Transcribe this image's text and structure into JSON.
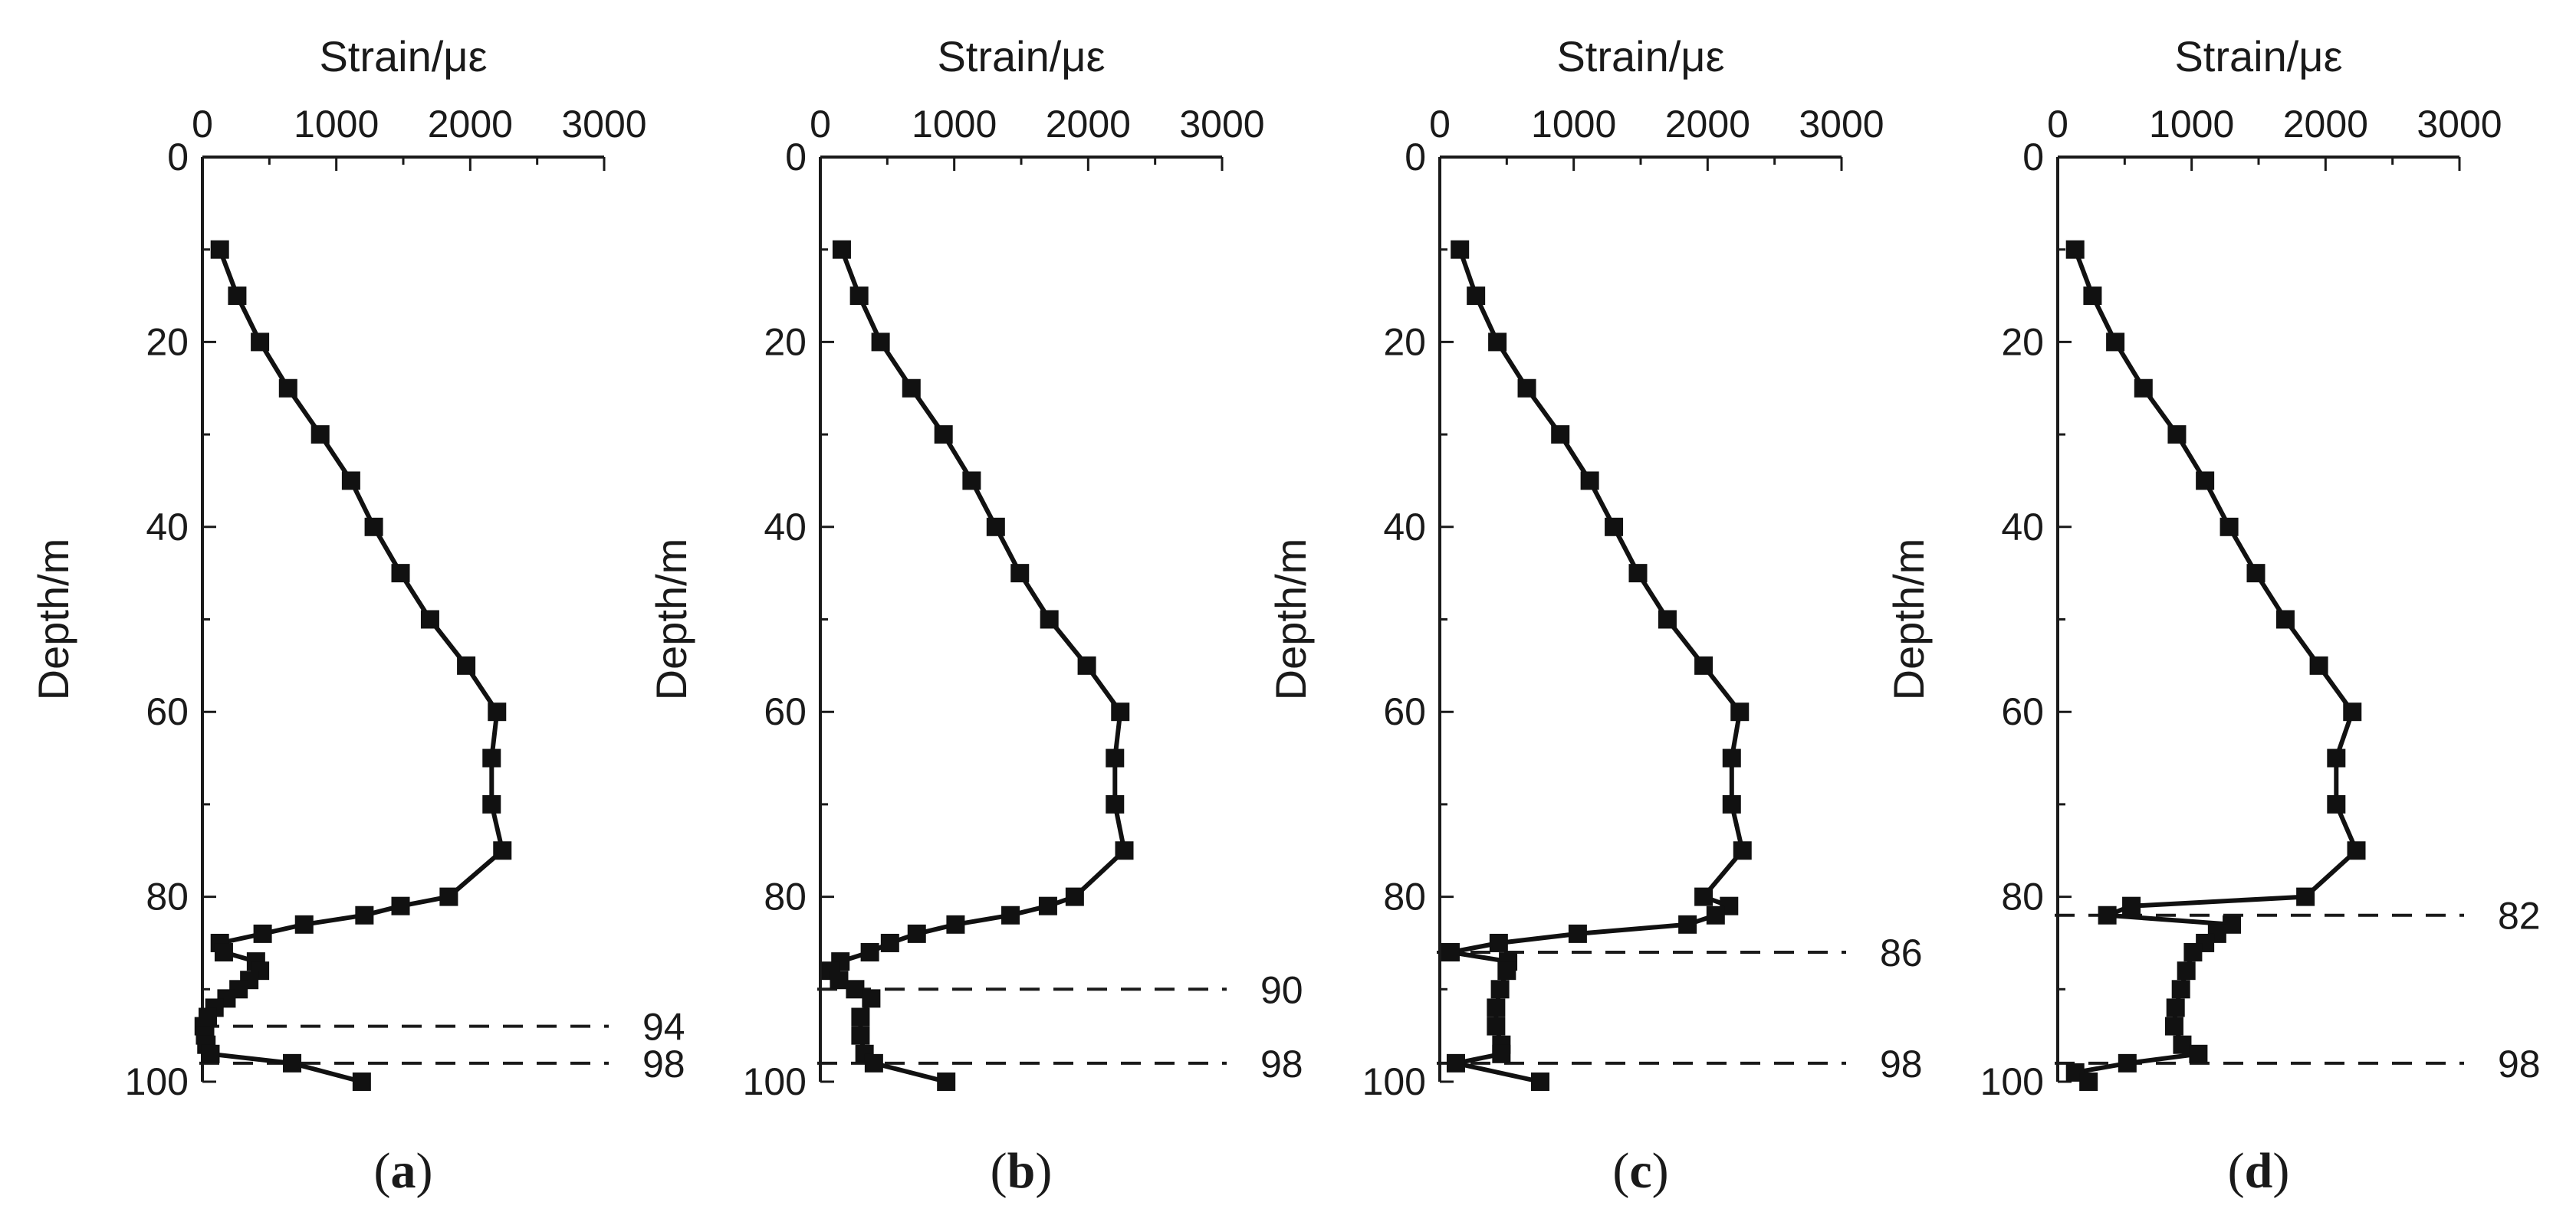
{
  "chart_data": [
    {
      "type": "line",
      "panel_label": "a",
      "xlabel": "Strain/με",
      "ylabel": "Depth/m",
      "xlim": [
        0,
        3000
      ],
      "ylim": [
        0,
        100
      ],
      "y_inverted": true,
      "x_axis_position": "top",
      "xticks": [
        0,
        1000,
        2000,
        3000
      ],
      "yticks": [
        0,
        20,
        40,
        60,
        80,
        100
      ],
      "marker": "square",
      "series": [
        {
          "name": "strain",
          "points": [
            [
              130,
              10
            ],
            [
              260,
              15
            ],
            [
              430,
              20
            ],
            [
              640,
              25
            ],
            [
              880,
              30
            ],
            [
              1110,
              35
            ],
            [
              1280,
              40
            ],
            [
              1480,
              45
            ],
            [
              1700,
              50
            ],
            [
              1970,
              55
            ],
            [
              2200,
              60
            ],
            [
              2160,
              65
            ],
            [
              2160,
              70
            ],
            [
              2240,
              75
            ],
            [
              1840,
              80
            ],
            [
              1480,
              81
            ],
            [
              1210,
              82
            ],
            [
              760,
              83
            ],
            [
              450,
              84
            ],
            [
              130,
              85
            ],
            [
              160,
              86
            ],
            [
              400,
              87
            ],
            [
              430,
              88
            ],
            [
              350,
              89
            ],
            [
              270,
              90
            ],
            [
              180,
              91
            ],
            [
              90,
              92
            ],
            [
              40,
              93
            ],
            [
              10,
              94
            ],
            [
              20,
              95
            ],
            [
              30,
              96
            ],
            [
              60,
              97
            ],
            [
              670,
              98
            ],
            [
              1190,
              100
            ]
          ]
        }
      ],
      "reference_lines": [
        {
          "depth": 94,
          "label": "94"
        },
        {
          "depth": 98,
          "label": "98"
        }
      ]
    },
    {
      "type": "line",
      "panel_label": "b",
      "xlabel": "Strain/με",
      "ylabel": "Depth/m",
      "xlim": [
        0,
        3000
      ],
      "ylim": [
        0,
        100
      ],
      "y_inverted": true,
      "x_axis_position": "top",
      "xticks": [
        0,
        1000,
        2000,
        3000
      ],
      "yticks": [
        0,
        20,
        40,
        60,
        80,
        100
      ],
      "marker": "square",
      "series": [
        {
          "name": "strain",
          "points": [
            [
              160,
              10
            ],
            [
              290,
              15
            ],
            [
              450,
              20
            ],
            [
              680,
              25
            ],
            [
              920,
              30
            ],
            [
              1130,
              35
            ],
            [
              1310,
              40
            ],
            [
              1490,
              45
            ],
            [
              1710,
              50
            ],
            [
              1990,
              55
            ],
            [
              2240,
              60
            ],
            [
              2200,
              65
            ],
            [
              2200,
              70
            ],
            [
              2270,
              75
            ],
            [
              1900,
              80
            ],
            [
              1700,
              81
            ],
            [
              1420,
              82
            ],
            [
              1010,
              83
            ],
            [
              720,
              84
            ],
            [
              520,
              85
            ],
            [
              370,
              86
            ],
            [
              150,
              87
            ],
            [
              80,
              88
            ],
            [
              140,
              89
            ],
            [
              260,
              90
            ],
            [
              380,
              91
            ],
            [
              300,
              93
            ],
            [
              300,
              95
            ],
            [
              330,
              97
            ],
            [
              400,
              98
            ],
            [
              940,
              100
            ]
          ]
        }
      ],
      "reference_lines": [
        {
          "depth": 90,
          "label": "90"
        },
        {
          "depth": 98,
          "label": "98"
        }
      ]
    },
    {
      "type": "line",
      "panel_label": "c",
      "xlabel": "Strain/με",
      "ylabel": "Depth/m",
      "xlim": [
        0,
        3000
      ],
      "ylim": [
        0,
        100
      ],
      "y_inverted": true,
      "x_axis_position": "top",
      "xticks": [
        0,
        1000,
        2000,
        3000
      ],
      "yticks": [
        0,
        20,
        40,
        60,
        80,
        100
      ],
      "marker": "square",
      "series": [
        {
          "name": "strain",
          "points": [
            [
              150,
              10
            ],
            [
              270,
              15
            ],
            [
              430,
              20
            ],
            [
              650,
              25
            ],
            [
              900,
              30
            ],
            [
              1120,
              35
            ],
            [
              1300,
              40
            ],
            [
              1480,
              45
            ],
            [
              1700,
              50
            ],
            [
              1970,
              55
            ],
            [
              2240,
              60
            ],
            [
              2180,
              65
            ],
            [
              2180,
              70
            ],
            [
              2260,
              75
            ],
            [
              1970,
              80
            ],
            [
              2160,
              81
            ],
            [
              2060,
              82
            ],
            [
              1850,
              83
            ],
            [
              1030,
              84
            ],
            [
              440,
              85
            ],
            [
              80,
              86
            ],
            [
              510,
              87
            ],
            [
              500,
              88
            ],
            [
              450,
              90
            ],
            [
              420,
              92
            ],
            [
              420,
              94
            ],
            [
              460,
              96
            ],
            [
              460,
              97
            ],
            [
              120,
              98
            ],
            [
              750,
              100
            ]
          ]
        }
      ],
      "reference_lines": [
        {
          "depth": 86,
          "label": "86"
        },
        {
          "depth": 98,
          "label": "98"
        }
      ]
    },
    {
      "type": "line",
      "panel_label": "d",
      "xlabel": "Strain/με",
      "ylabel": "Depth/m",
      "xlim": [
        0,
        3000
      ],
      "ylim": [
        0,
        100
      ],
      "y_inverted": true,
      "x_axis_position": "top",
      "xticks": [
        0,
        1000,
        2000,
        3000
      ],
      "yticks": [
        0,
        20,
        40,
        60,
        80,
        100
      ],
      "marker": "square",
      "series": [
        {
          "name": "strain",
          "points": [
            [
              130,
              10
            ],
            [
              260,
              15
            ],
            [
              430,
              20
            ],
            [
              640,
              25
            ],
            [
              890,
              30
            ],
            [
              1100,
              35
            ],
            [
              1280,
              40
            ],
            [
              1480,
              45
            ],
            [
              1700,
              50
            ],
            [
              1950,
              55
            ],
            [
              2200,
              60
            ],
            [
              2080,
              65
            ],
            [
              2080,
              70
            ],
            [
              2230,
              75
            ],
            [
              1850,
              80
            ],
            [
              550,
              81
            ],
            [
              370,
              82
            ],
            [
              1300,
              83
            ],
            [
              1190,
              84
            ],
            [
              1100,
              85
            ],
            [
              1010,
              86
            ],
            [
              960,
              88
            ],
            [
              920,
              90
            ],
            [
              880,
              92
            ],
            [
              870,
              94
            ],
            [
              930,
              96
            ],
            [
              1050,
              97
            ],
            [
              520,
              98
            ],
            [
              130,
              99
            ],
            [
              230,
              100
            ]
          ]
        }
      ],
      "reference_lines": [
        {
          "depth": 82,
          "label": "82"
        },
        {
          "depth": 98,
          "label": "98"
        }
      ]
    }
  ]
}
